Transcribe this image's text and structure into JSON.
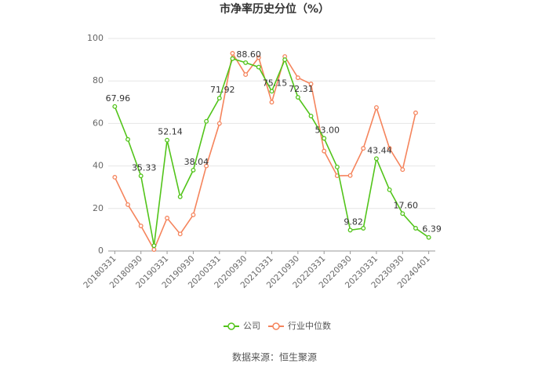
{
  "chart_data": {
    "type": "line",
    "title": "市净率历史分位（%）",
    "categories": [
      "20180331",
      null,
      "20180930",
      null,
      "20190331",
      null,
      "20190930",
      null,
      "20200331",
      null,
      "20200930",
      null,
      "20210331",
      null,
      "20210930",
      null,
      "20220331",
      null,
      "20220930",
      null,
      "20230331",
      null,
      "20230930",
      null,
      "20240401"
    ],
    "series": [
      {
        "name": "公司",
        "color": "#52c41a",
        "values": [
          67.96,
          52.5,
          35.33,
          2.5,
          52.14,
          25.5,
          38.04,
          61,
          71.92,
          90.5,
          88.6,
          86.5,
          75.15,
          90,
          72.31,
          63.5,
          53.0,
          39.5,
          9.82,
          10.7,
          43.44,
          28.8,
          17.6,
          10.7,
          6.39
        ],
        "value_labels": [
          "67.96",
          null,
          "35.33",
          null,
          "52.14",
          null,
          "38.04",
          null,
          "71.92",
          null,
          "88.60",
          null,
          "75.15",
          null,
          "72.31",
          null,
          "53.00",
          null,
          "9.82",
          null,
          "43.44",
          null,
          "17.60",
          null,
          "6.39"
        ]
      },
      {
        "name": "行业中位数",
        "color": "#f5845c",
        "values": [
          34.7,
          21.8,
          11.8,
          0.7,
          15.5,
          8,
          17,
          40,
          60,
          93,
          83,
          91,
          70,
          91.5,
          81.5,
          78.6,
          47,
          35.4,
          35.5,
          48.3,
          67.5,
          48.3,
          38.3,
          65,
          null
        ]
      }
    ],
    "ylim": [
      0,
      100
    ],
    "yticks": [
      0,
      20,
      40,
      60,
      80,
      100
    ],
    "grid": true,
    "legend": "bottom",
    "source": "数据来源：恒生聚源"
  }
}
